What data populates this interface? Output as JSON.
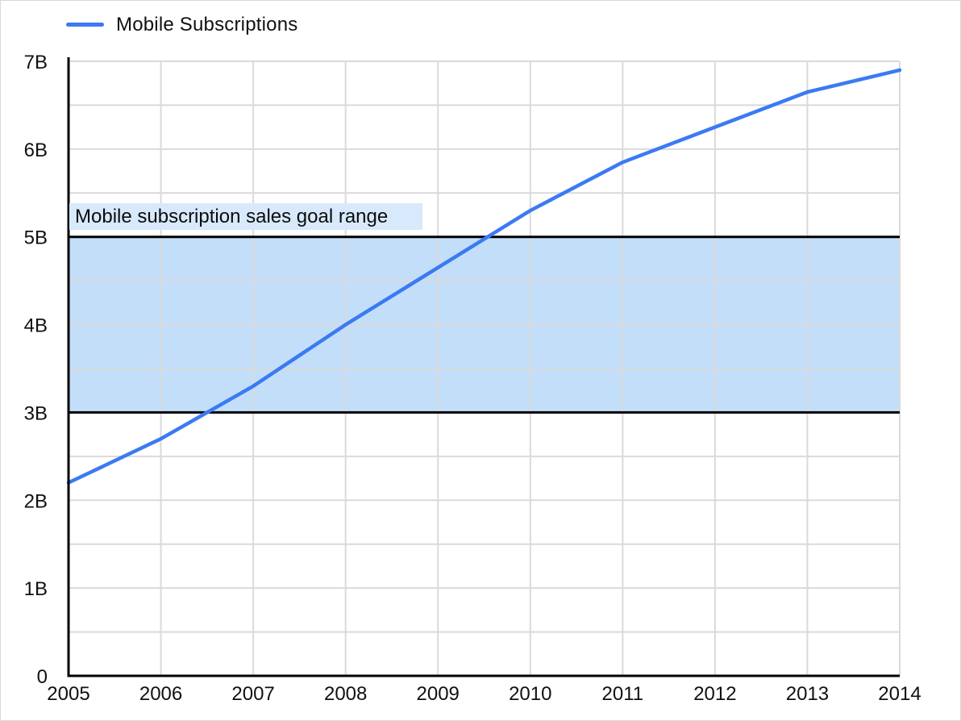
{
  "legend": {
    "series_label": "Mobile Subscriptions",
    "swatch_color": "#3b7af2"
  },
  "chart_data": {
    "type": "line",
    "title": "",
    "xlabel": "",
    "ylabel": "",
    "x": [
      2005,
      2006,
      2007,
      2008,
      2009,
      2010,
      2011,
      2012,
      2013,
      2014
    ],
    "x_tick_labels": [
      "2005",
      "2006",
      "2007",
      "2008",
      "2009",
      "2010",
      "2011",
      "2012",
      "2013",
      "2014"
    ],
    "series": [
      {
        "name": "Mobile Subscriptions",
        "color": "#3b7af2",
        "unit": "billions",
        "values": [
          2.2,
          2.7,
          3.3,
          4.0,
          4.65,
          5.3,
          5.85,
          6.25,
          6.65,
          6.9
        ]
      }
    ],
    "y_tick_labels": [
      "0",
      "1B",
      "2B",
      "3B",
      "4B",
      "5B",
      "6B",
      "7B"
    ],
    "ylim": [
      0,
      7
    ],
    "y_minor_step": 0.5,
    "grid": true,
    "legend_position": "top-left",
    "gridline_color": "#dadada",
    "axis_color": "#000000",
    "goal_band": {
      "label": "Mobile subscription sales goal range",
      "from": 3,
      "to": 5,
      "fill": "#c3def9",
      "label_fill": "#d7e9fb",
      "border_color": "#000000",
      "border_width": 3
    }
  }
}
